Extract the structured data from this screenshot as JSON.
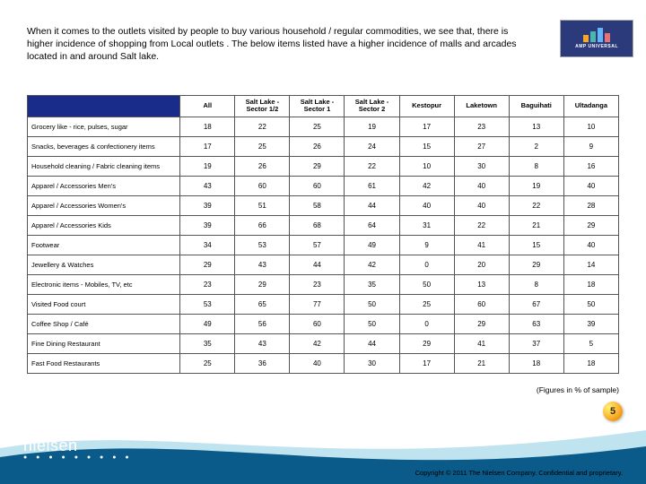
{
  "intro_text": "When it comes to the outlets visited by people to buy various household / regular commodities, we see that, there is higher incidence of shopping from Local outlets . The below items listed have a higher incidence of malls and arcades located in and around Salt lake.",
  "logo": {
    "label": "AMP UNIVERSAL",
    "bar_colors": [
      "#f9a825",
      "#4db6ac",
      "#64b5f6",
      "#e57373"
    ],
    "bar_heights": [
      8,
      12,
      16,
      10
    ]
  },
  "table": {
    "columns": [
      "All",
      "Salt Lake - Sector 1/2",
      "Salt Lake - Sector 1",
      "Salt Lake - Sector 2",
      "Kestopur",
      "Laketown",
      "Baguihati",
      "Ultadanga"
    ],
    "row_col_width": 170,
    "data_col_width": 61,
    "header_bg": "#1a2c8a",
    "rows": [
      {
        "label": "Grocery like - rice, pulses, sugar",
        "v": [
          18,
          22,
          25,
          19,
          17,
          23,
          13,
          10
        ]
      },
      {
        "label": "Snacks, beverages & confectionery items",
        "v": [
          17,
          25,
          26,
          24,
          15,
          27,
          2,
          9
        ]
      },
      {
        "label": "Household cleaning / Fabric cleaning items",
        "v": [
          19,
          26,
          29,
          22,
          10,
          30,
          8,
          16
        ]
      },
      {
        "label": "Apparel / Accessories Men's",
        "v": [
          43,
          60,
          60,
          61,
          42,
          40,
          19,
          40
        ]
      },
      {
        "label": "Apparel / Accessories Women's",
        "v": [
          39,
          51,
          58,
          44,
          40,
          40,
          22,
          28
        ]
      },
      {
        "label": "Apparel / Accessories Kids",
        "v": [
          39,
          66,
          68,
          64,
          31,
          22,
          21,
          29
        ]
      },
      {
        "label": "Footwear",
        "v": [
          34,
          53,
          57,
          49,
          9,
          41,
          15,
          40
        ]
      },
      {
        "label": "Jewellery & Watches",
        "v": [
          29,
          43,
          44,
          42,
          0,
          20,
          29,
          14
        ]
      },
      {
        "label": "Electronic items - Mobiles, TV, etc",
        "v": [
          23,
          29,
          23,
          35,
          50,
          13,
          8,
          18
        ]
      },
      {
        "label": "Visited Food court",
        "v": [
          53,
          65,
          77,
          50,
          25,
          60,
          67,
          50
        ]
      },
      {
        "label": "Coffee Shop / Café",
        "v": [
          49,
          56,
          60,
          50,
          0,
          29,
          63,
          39
        ]
      },
      {
        "label": "Fine Dining Restaurant",
        "v": [
          35,
          43,
          42,
          44,
          29,
          41,
          37,
          5
        ]
      },
      {
        "label": "Fast Food Restaurants",
        "v": [
          25,
          36,
          40,
          30,
          17,
          21,
          18,
          18
        ]
      }
    ]
  },
  "figures_note": "(Figures in % of sample)",
  "page_number": "5",
  "brand": "nielsen",
  "copyright": "Copyright © 2011 The Nielsen Company. Confidential and proprietary.",
  "wave_colors": {
    "light": "#bfe3ef",
    "dark": "#0a5a8a"
  }
}
